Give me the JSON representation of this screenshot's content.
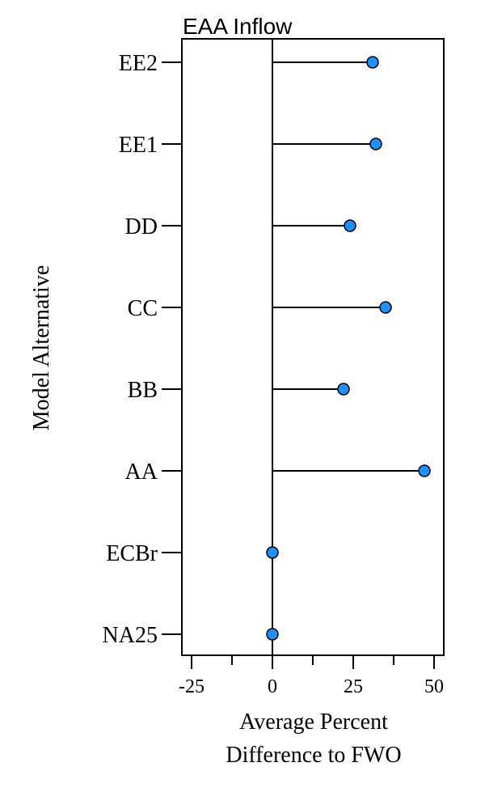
{
  "chart_data": {
    "type": "lollipop",
    "title": "EAA Inflow",
    "xlabel_lines": [
      "Average Percent",
      "Difference to FWO"
    ],
    "ylabel": "Model Alternative",
    "xlim": [
      -28,
      53
    ],
    "xticks": [
      -25,
      0,
      25,
      50
    ],
    "xticks_minor": [
      -12.5,
      12.5,
      37.5
    ],
    "categories": [
      "EE2",
      "EE1",
      "DD",
      "CC",
      "BB",
      "AA",
      "ECBr",
      "NA25"
    ],
    "values": [
      31,
      32,
      24,
      35,
      22,
      47,
      0,
      0
    ],
    "reference_line": 0,
    "marker_color": "#1E90FF",
    "grid": false
  }
}
